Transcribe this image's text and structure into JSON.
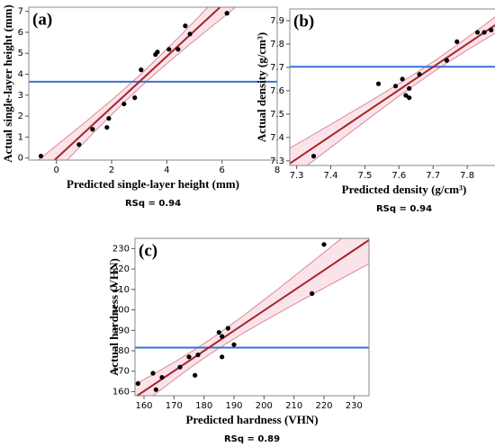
{
  "chart_data": [
    {
      "type": "scatter",
      "label": "(a)",
      "xlabel": "Predicted single-layer height (mm)",
      "ylabel": "Actual single-layer height (mm)",
      "note": "RSq = 0.94",
      "x": [
        -0.56,
        0.82,
        1.31,
        1.83,
        1.9,
        2.45,
        2.84,
        3.07,
        3.59,
        3.66,
        4.08,
        4.41,
        4.67,
        4.84,
        6.18
      ],
      "values": [
        0.09,
        0.64,
        1.37,
        1.46,
        1.89,
        2.58,
        2.88,
        4.21,
        4.94,
        5.06,
        5.19,
        5.19,
        6.31,
        5.92,
        6.91
      ],
      "xlim": [
        -1,
        8
      ],
      "ylim": [
        -0.1,
        7.2
      ],
      "xticks": [
        0,
        2,
        4,
        6,
        8
      ],
      "yticks": [
        0,
        1,
        2,
        3,
        4,
        5,
        6,
        7
      ],
      "color": "#000000",
      "fit_color": "#a3262a",
      "mean_color": "#3a6fd8",
      "band_color": "#fbe3ea"
    },
    {
      "type": "scatter",
      "label": "(b)",
      "xlabel": "Predicted density (g/cm³)",
      "ylabel": "Actual density (g/cm³)",
      "note": "RSq = 0.94",
      "x": [
        7.35,
        7.54,
        7.59,
        7.61,
        7.62,
        7.63,
        7.63,
        7.66,
        7.74,
        7.77,
        7.83,
        7.85,
        7.87,
        7.91,
        7.91
      ],
      "values": [
        7.32,
        7.63,
        7.62,
        7.65,
        7.58,
        7.57,
        7.61,
        7.67,
        7.73,
        7.81,
        7.85,
        7.85,
        7.86,
        7.92,
        7.87
      ],
      "xlim": [
        7.28,
        7.95
      ],
      "ylim": [
        7.28,
        7.95
      ],
      "xticks": [
        7.3,
        7.4,
        7.5,
        7.6,
        7.7,
        7.8,
        7.9
      ],
      "yticks": [
        7.3,
        7.4,
        7.5,
        7.6,
        7.7,
        7.8,
        7.9
      ],
      "color": "#000000",
      "fit_color": "#a3262a",
      "mean_color": "#3a6fd8",
      "band_color": "#fbe3ea"
    },
    {
      "type": "scatter",
      "label": "(c)",
      "xlabel": "Predicted hardness (VHN)",
      "ylabel": "Actual hardness (VHN)",
      "note": "RSq = 0.89",
      "x": [
        158,
        163,
        164,
        166,
        172,
        175,
        177,
        178,
        185,
        186,
        186,
        188,
        190,
        216,
        220
      ],
      "values": [
        164,
        169,
        161,
        167,
        172,
        177,
        168,
        178,
        189,
        187,
        177,
        191,
        183,
        208,
        232
      ],
      "xlim": [
        157,
        235
      ],
      "ylim": [
        158,
        235
      ],
      "xticks": [
        160,
        170,
        180,
        190,
        200,
        210,
        220,
        230
      ],
      "yticks": [
        160,
        170,
        180,
        190,
        200,
        210,
        220,
        230
      ],
      "color": "#000000",
      "fit_color": "#a3262a",
      "mean_color": "#3a6fd8",
      "band_color": "#fbe3ea"
    }
  ]
}
